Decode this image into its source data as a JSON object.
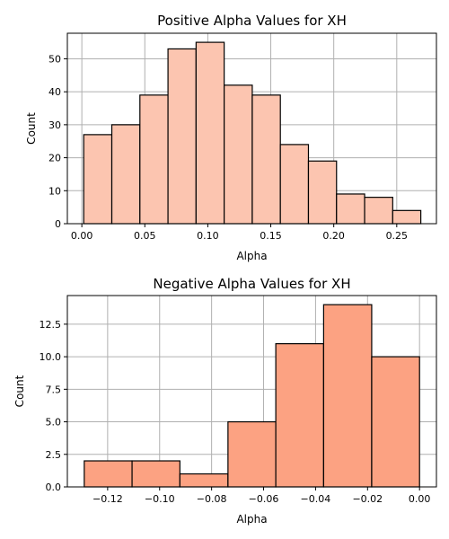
{
  "chart_data": [
    {
      "type": "bar",
      "title": "Positive Alpha Values for XH",
      "xlabel": "Alpha",
      "ylabel": "Count",
      "xlim": [
        -0.0115,
        0.2815
      ],
      "ylim": [
        0,
        57.75
      ],
      "xticks": [
        0.0,
        0.05,
        0.1,
        0.15,
        0.2,
        0.25
      ],
      "xtick_labels": [
        "0.00",
        "0.05",
        "0.10",
        "0.15",
        "0.20",
        "0.25"
      ],
      "yticks": [
        0,
        10,
        20,
        30,
        40,
        50
      ],
      "ytick_labels": [
        "0",
        "10",
        "20",
        "30",
        "40",
        "50"
      ],
      "bin_edges": [
        0.0015,
        0.0238,
        0.0461,
        0.0684,
        0.0907,
        0.113,
        0.1353,
        0.1576,
        0.1799,
        0.2022,
        0.2245,
        0.2468,
        0.2691
      ],
      "values": [
        27,
        30,
        39,
        53,
        55,
        42,
        39,
        24,
        19,
        9,
        8,
        4
      ],
      "color": "#fcc5b0",
      "grid": true
    },
    {
      "type": "bar",
      "title": "Negative Alpha Values for XH",
      "xlabel": "Alpha",
      "ylabel": "Count",
      "xlim": [
        -0.1355,
        0.0065
      ],
      "ylim": [
        0,
        14.7
      ],
      "xticks": [
        -0.12,
        -0.1,
        -0.08,
        -0.06,
        -0.04,
        -0.02,
        0.0
      ],
      "xtick_labels": [
        "−0.12",
        "−0.10",
        "−0.08",
        "−0.06",
        "−0.04",
        "−0.02",
        "0.00"
      ],
      "yticks": [
        0,
        2.5,
        5,
        7.5,
        10,
        12.5
      ],
      "ytick_labels": [
        "0.0",
        "2.5",
        "5.0",
        "7.5",
        "10.0",
        "12.5"
      ],
      "bin_edges": [
        -0.129,
        -0.1106,
        -0.0922,
        -0.0737,
        -0.0553,
        -0.0369,
        -0.0184,
        0.0
      ],
      "values": [
        2,
        2,
        1,
        5,
        11,
        14,
        10
      ],
      "color": "#fca282",
      "grid": true
    }
  ]
}
